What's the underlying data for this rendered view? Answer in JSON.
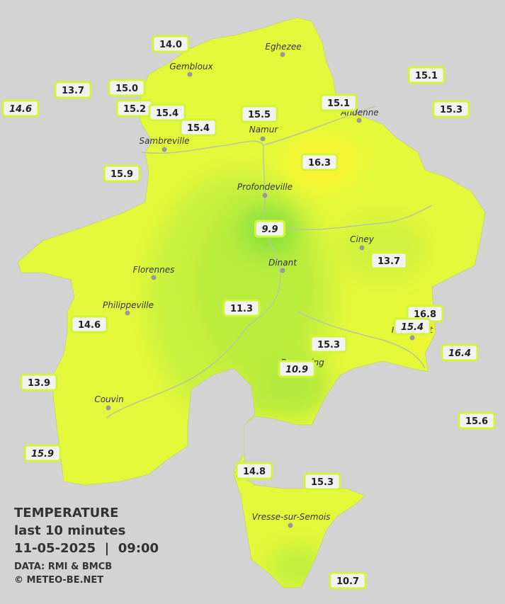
{
  "legend": {
    "title": "TEMPERATURE",
    "period": "last 10 minutes",
    "datetime": "11-05-2025  |  09:00",
    "source": "DATA: RMI & BMCB",
    "credit": "© METEO-BE.NET"
  },
  "cities": [
    "Eghezee",
    "Gembloux",
    "Andenne",
    "Namur",
    "Sambreville",
    "Profondeville",
    "Ciney",
    "Florennes",
    "Dinant",
    "Philippeville",
    "Rochefort",
    "Beauraing",
    "Couvin",
    "Vresse-sur-Semois"
  ],
  "stations": [
    {
      "label": "14.0",
      "italic": false
    },
    {
      "label": "13.7",
      "italic": false
    },
    {
      "label": "14.6",
      "italic": true
    },
    {
      "label": "15.0",
      "italic": false
    },
    {
      "label": "15.2",
      "italic": false
    },
    {
      "label": "15.4",
      "italic": false
    },
    {
      "label": "15.4",
      "italic": false
    },
    {
      "label": "15.5",
      "italic": false
    },
    {
      "label": "15.1",
      "italic": false
    },
    {
      "label": "15.1",
      "italic": false
    },
    {
      "label": "15.3",
      "italic": false
    },
    {
      "label": "15.9",
      "italic": false
    },
    {
      "label": "16.3",
      "italic": false
    },
    {
      "label": "9.9",
      "italic": true
    },
    {
      "label": "13.7",
      "italic": false
    },
    {
      "label": "11.3",
      "italic": false
    },
    {
      "label": "14.6",
      "italic": false
    },
    {
      "label": "16.8",
      "italic": false
    },
    {
      "label": "15.4",
      "italic": true
    },
    {
      "label": "15.3",
      "italic": false
    },
    {
      "label": "16.4",
      "italic": true
    },
    {
      "label": "10.9",
      "italic": true
    },
    {
      "label": "13.9",
      "italic": false
    },
    {
      "label": "15.6",
      "italic": false
    },
    {
      "label": "15.9",
      "italic": true
    },
    {
      "label": "14.8",
      "italic": false
    },
    {
      "label": "15.3",
      "italic": false
    },
    {
      "label": "10.7",
      "italic": false
    }
  ]
}
